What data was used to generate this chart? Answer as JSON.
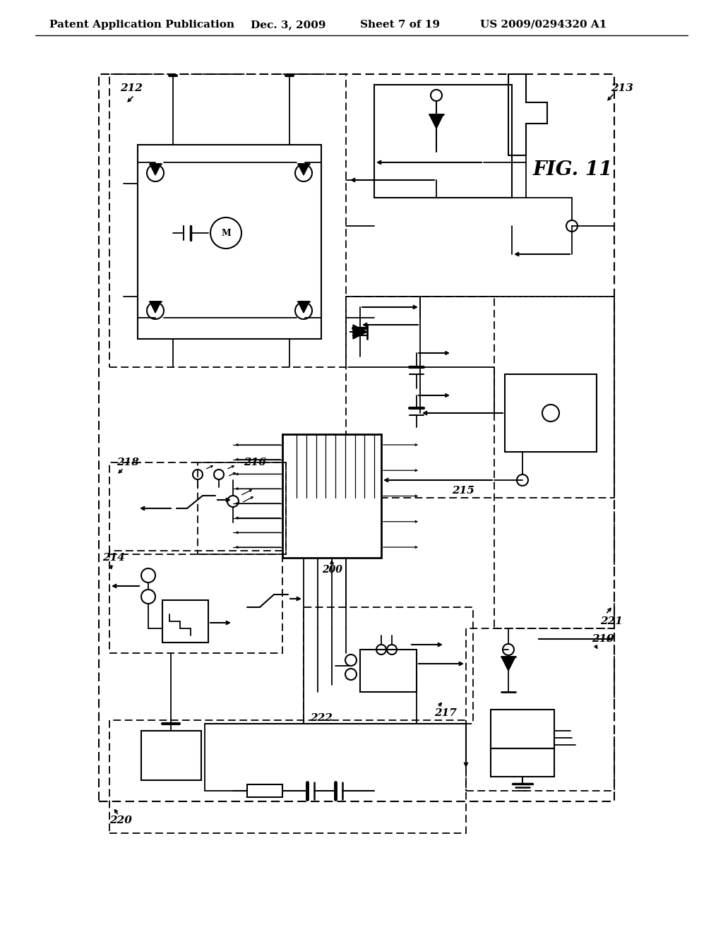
{
  "title": "Patent Application Publication",
  "date": "Dec. 3, 2009",
  "sheet": "Sheet 7 of 19",
  "patent_num": "US 2009/0294320 A1",
  "fig_label": "FIG. 11",
  "bg_color": "#ffffff",
  "line_color": "#000000"
}
